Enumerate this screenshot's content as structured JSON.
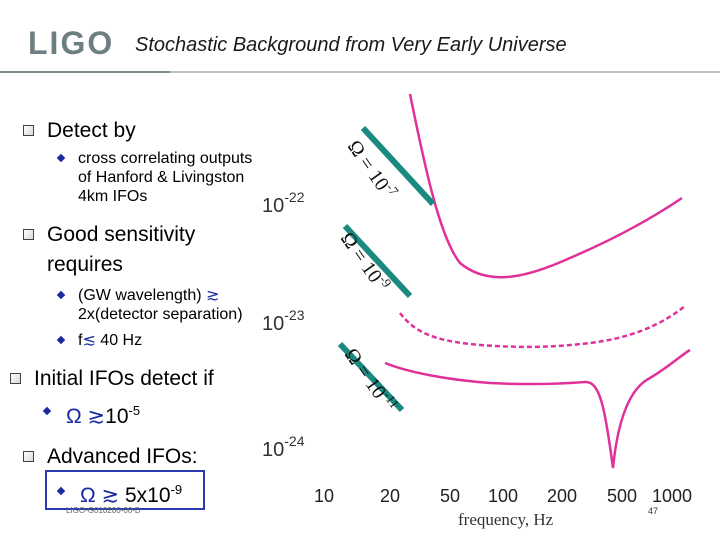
{
  "header": {
    "logo_text": "LIGO",
    "title": "Stochastic Background from Very Early Universe"
  },
  "bullets": {
    "detect": {
      "label": "Detect by",
      "sub": [
        "cross correlating outputs",
        "of Hanford & Livingston",
        "4km IFOs"
      ]
    },
    "sensitivity": {
      "line1": "Good sensitivity",
      "line2": "requires",
      "sub1_a": "(GW wavelength) ",
      "sub1_sym": "≳",
      "sub1_b": "2x(detector separation)",
      "sub2_a": "f",
      "sub2_sym": "≲",
      "sub2_b": " 40 Hz"
    },
    "initial": {
      "label": "Initial IFOs detect if",
      "omega": "Ω",
      "gtrsim": "≳",
      "base": "10",
      "exp": "-5"
    },
    "advanced": {
      "label": "Advanced IFOs:",
      "omega": "Ω",
      "gtrsim": "≳",
      "base": " 5x10",
      "exp": "-9"
    }
  },
  "plot": {
    "y_ticks": [
      {
        "base": "10",
        "exp": "-22"
      },
      {
        "base": "10",
        "exp": "-23"
      },
      {
        "base": "10",
        "exp": "-24"
      }
    ],
    "x_ticks": [
      "10",
      "20",
      "50",
      "100",
      "200",
      "500",
      "1000"
    ],
    "x_label": "frequency, Hz",
    "omega_labels": [
      {
        "omega": "Ω",
        "text": " = 10",
        "exp": "-7"
      },
      {
        "omega": "Ω",
        "text": " = 10",
        "exp": "-9"
      },
      {
        "omega": "Ω",
        "text": " = 10",
        "exp": "-11"
      }
    ]
  },
  "colors": {
    "curve": "#e0309a",
    "bar": "#1a8a80",
    "bullet": "#1a2aa0",
    "box": "#2a3ab0"
  },
  "footer": {
    "doc_id": "LIGO-G010200-00-D",
    "page_number": "47"
  }
}
